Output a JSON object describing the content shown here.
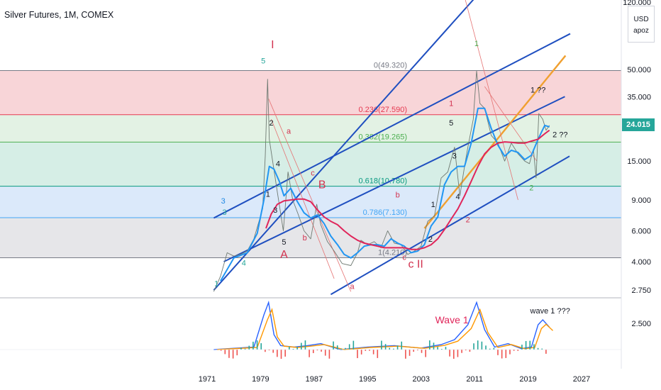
{
  "header": {
    "title": "Silver Futures, 1M, COMEX"
  },
  "side_panel": {
    "currency": "USD",
    "scale_button": "apoz"
  },
  "chart_data": {
    "type": "line",
    "title": "Silver Futures, 1M, COMEX",
    "y_scale": "log",
    "ylim": [
      2.5,
      130
    ],
    "xlim": [
      1968,
      2030
    ],
    "x_ticks": [
      "1971",
      "1979",
      "1987",
      "1995",
      "2003",
      "2011",
      "2019",
      "2027"
    ],
    "y_ticks": [
      "120.000",
      "50.000",
      "35.000",
      "15.000",
      "9.000",
      "6.000",
      "4.000",
      "2.750"
    ],
    "last_price": "24.015",
    "series": [
      {
        "values": [
          [
            1972,
            2.7
          ],
          [
            1973,
            3.3
          ],
          [
            1974,
            4.5
          ],
          [
            1975,
            4.3
          ],
          [
            1976,
            4.4
          ],
          [
            1977,
            4.6
          ],
          [
            1978,
            5.4
          ],
          [
            1979.3,
            8
          ],
          [
            1979.7,
            16
          ],
          [
            1980.05,
            44
          ],
          [
            1980.3,
            20
          ],
          [
            1980.8,
            15
          ],
          [
            1981.5,
            10
          ],
          [
            1982.4,
            6.0
          ],
          [
            1983.1,
            13
          ],
          [
            1983.8,
            9
          ],
          [
            1984.6,
            7.5
          ],
          [
            1985.5,
            6
          ],
          [
            1986.5,
            5.4
          ],
          [
            1987.4,
            8.5
          ],
          [
            1988,
            6.5
          ],
          [
            1989,
            5.2
          ],
          [
            1990,
            4.6
          ],
          [
            1991.2,
            3.9
          ],
          [
            1992.5,
            3.8
          ],
          [
            1993.5,
            4.5
          ],
          [
            1994,
            5.3
          ],
          [
            1995,
            5.0
          ],
          [
            1996,
            5.2
          ],
          [
            1997,
            4.8
          ],
          [
            1998,
            6.0
          ],
          [
            1999,
            5.1
          ],
          [
            2000,
            5.0
          ],
          [
            2001,
            4.4
          ],
          [
            2002,
            4.6
          ],
          [
            2003,
            4.9
          ],
          [
            2004,
            6.8
          ],
          [
            2005,
            7.3
          ],
          [
            2006,
            12
          ],
          [
            2007,
            13
          ],
          [
            2008,
            18
          ],
          [
            2008.8,
            9.5
          ],
          [
            2009.5,
            14
          ],
          [
            2010,
            18
          ],
          [
            2010.8,
            26
          ],
          [
            2011.3,
            49
          ],
          [
            2011.8,
            32
          ],
          [
            2012.5,
            30
          ],
          [
            2013.5,
            21
          ],
          [
            2014.5,
            19
          ],
          [
            2015.5,
            15
          ],
          [
            2016.5,
            19
          ],
          [
            2017.5,
            16.5
          ],
          [
            2018.5,
            15
          ],
          [
            2019.2,
            14.5
          ],
          [
            2019.8,
            17.5
          ],
          [
            2020.2,
            12
          ],
          [
            2020.6,
            28
          ],
          [
            2021.2,
            26
          ],
          [
            2021.7,
            22.5
          ],
          [
            2022.2,
            24
          ]
        ]
      },
      {
        "values": [
          [
            1973,
            3.1
          ],
          [
            1975,
            4.2
          ],
          [
            1977,
            4.5
          ],
          [
            1978.5,
            5.8
          ],
          [
            1979.5,
            9
          ],
          [
            1980.3,
            14
          ],
          [
            1981,
            13.5
          ],
          [
            1981.8,
            11.5
          ],
          [
            1982.5,
            9.5
          ],
          [
            1983.5,
            10.5
          ],
          [
            1984.5,
            8.8
          ],
          [
            1985.5,
            7.6
          ],
          [
            1986.5,
            7.1
          ],
          [
            1987.5,
            7.4
          ],
          [
            1988.5,
            6.6
          ],
          [
            1989.5,
            5.6
          ],
          [
            1990.5,
            5.0
          ],
          [
            1991.5,
            4.4
          ],
          [
            1992.5,
            4.2
          ],
          [
            1993.5,
            4.5
          ],
          [
            1994.5,
            4.9
          ],
          [
            1995.5,
            5.0
          ],
          [
            1996.5,
            5.0
          ],
          [
            1997.5,
            4.9
          ],
          [
            1998.5,
            5.4
          ],
          [
            1999.5,
            5.1
          ],
          [
            2000.5,
            4.9
          ],
          [
            2001.5,
            4.5
          ],
          [
            2002.5,
            4.6
          ],
          [
            2003.5,
            5.0
          ],
          [
            2004.5,
            6.4
          ],
          [
            2005.5,
            7.2
          ],
          [
            2006.5,
            11
          ],
          [
            2007.5,
            13
          ],
          [
            2008.5,
            14
          ],
          [
            2009.5,
            14
          ],
          [
            2010.5,
            19
          ],
          [
            2011.5,
            30
          ],
          [
            2012.5,
            30
          ],
          [
            2013.5,
            23
          ],
          [
            2014.5,
            18.5
          ],
          [
            2015.5,
            16
          ],
          [
            2016.5,
            17.3
          ],
          [
            2017.5,
            16.8
          ],
          [
            2018.5,
            15.3
          ],
          [
            2019.5,
            16.2
          ],
          [
            2020.5,
            20
          ],
          [
            2021.5,
            24
          ],
          [
            2022.2,
            23.5
          ]
        ]
      },
      {
        "values": [
          [
            1979.8,
            6.2
          ],
          [
            1980.6,
            7.5
          ],
          [
            1981.5,
            8.5
          ],
          [
            1982.5,
            8.9
          ],
          [
            1983.5,
            9.0
          ],
          [
            1984.5,
            9.1
          ],
          [
            1985.5,
            9.1
          ],
          [
            1986.5,
            8.8
          ],
          [
            1987.5,
            7.9
          ],
          [
            1988.5,
            7.2
          ],
          [
            1989.5,
            6.8
          ],
          [
            1990.5,
            6.5
          ],
          [
            1991.5,
            6.0
          ],
          [
            1992.5,
            5.6
          ],
          [
            1993.5,
            5.3
          ],
          [
            1994.5,
            5.1
          ],
          [
            1995.5,
            5.0
          ],
          [
            1996.5,
            4.9
          ],
          [
            1997.5,
            4.8
          ],
          [
            1998.5,
            4.8
          ],
          [
            1999.5,
            4.8
          ],
          [
            2000.5,
            4.8
          ],
          [
            2001.5,
            4.7
          ],
          [
            2002.5,
            4.7
          ],
          [
            2003.5,
            4.8
          ],
          [
            2004.5,
            5.0
          ],
          [
            2005.5,
            5.4
          ],
          [
            2006.5,
            6.1
          ],
          [
            2007.5,
            7.0
          ],
          [
            2008.5,
            8.0
          ],
          [
            2009.5,
            9.5
          ],
          [
            2010.5,
            11.5
          ],
          [
            2011.5,
            14
          ],
          [
            2012.5,
            16.5
          ],
          [
            2013.5,
            18
          ],
          [
            2014.5,
            19
          ],
          [
            2015.5,
            19.3
          ],
          [
            2016.5,
            19.2
          ],
          [
            2017.5,
            19
          ],
          [
            2018.5,
            19
          ],
          [
            2019.5,
            19.5
          ],
          [
            2020.5,
            20
          ],
          [
            2021.5,
            21.5
          ],
          [
            2022.2,
            22.5
          ]
        ]
      }
    ],
    "fib_levels": [
      {
        "label": "0(49.320)",
        "value": 49.32
      },
      {
        "label": "0.236(27.590)",
        "value": 27.59
      },
      {
        "label": "0.382(19.265)",
        "value": 19.265
      },
      {
        "label": "0.618(10.780)",
        "value": 10.78
      },
      {
        "label": "0.786(7.130)",
        "value": 7.13
      },
      {
        "label": "1(4.210)",
        "value": 4.21
      }
    ],
    "fib_zones": [
      {
        "from": 27.59,
        "to": 49.32,
        "color": "#f8d5d8"
      },
      {
        "from": 19.265,
        "to": 27.59,
        "color": "#e3f2e4"
      },
      {
        "from": 10.78,
        "to": 19.265,
        "color": "#d6eee6"
      },
      {
        "from": 7.13,
        "to": 10.78,
        "color": "#dbe9fa"
      },
      {
        "from": 4.21,
        "to": 7.13,
        "color": "#e6e6e9"
      }
    ],
    "channel_lines": [
      {
        "from": [
          1972,
          2.75
        ],
        "to": [
          2011.2,
          130
        ]
      },
      {
        "from": [
          1972,
          7.1
        ],
        "to": [
          2025.3,
          80
        ]
      },
      {
        "from": [
          1973.5,
          4.0
        ],
        "to": [
          2024.5,
          35
        ]
      },
      {
        "from": [
          1989.5,
          2.6
        ],
        "to": [
          2025.2,
          16
        ]
      },
      {
        "from": [
          2003.5,
          6.2
        ],
        "to": [
          2024.6,
          60
        ]
      }
    ],
    "annotations": [
      {
        "text": "I",
        "x": 1980.8,
        "y": 66,
        "color": "#d2324f"
      },
      {
        "text": "5",
        "x": 1979.4,
        "y": 54,
        "color": "#26a69a"
      },
      {
        "text": "2",
        "x": 1980.6,
        "y": 24,
        "color": "#131722"
      },
      {
        "text": "a",
        "x": 1983.2,
        "y": 21.5,
        "color": "#d2324f"
      },
      {
        "text": "4",
        "x": 1981.6,
        "y": 14,
        "color": "#131722"
      },
      {
        "text": "c",
        "x": 1986.8,
        "y": 12.4,
        "color": "#d2324f"
      },
      {
        "text": "B",
        "x": 1988.2,
        "y": 10.5,
        "color": "#d2324f"
      },
      {
        "text": "1",
        "x": 1980.1,
        "y": 9.4,
        "color": "#131722"
      },
      {
        "text": "3",
        "x": 1981.2,
        "y": 7.6,
        "color": "#131722"
      },
      {
        "text": "5",
        "x": 1982.5,
        "y": 5.0,
        "color": "#131722"
      },
      {
        "text": "A",
        "x": 1982.5,
        "y": 4.2,
        "color": "#d2324f"
      },
      {
        "text": "b",
        "x": 1985.6,
        "y": 5.3,
        "color": "#d2324f"
      },
      {
        "text": "3",
        "x": 1973.4,
        "y": 8.6,
        "color": "#1e88e5"
      },
      {
        "text": "3",
        "x": 1973.6,
        "y": 7.4,
        "color": "#26a69a"
      },
      {
        "text": "4",
        "x": 1976.5,
        "y": 3.8,
        "color": "#26a69a"
      },
      {
        "text": "1",
        "x": 1972.4,
        "y": 2.9,
        "color": "#26a69a"
      },
      {
        "text": "a",
        "x": 1992.7,
        "y": 2.8,
        "color": "#d2324f"
      },
      {
        "text": "b",
        "x": 1999.5,
        "y": 9.3,
        "color": "#d2324f"
      },
      {
        "text": "c",
        "x": 2000.5,
        "y": 4.1,
        "color": "#d2324f"
      },
      {
        "text": "c II",
        "x": 2002.2,
        "y": 3.7,
        "color": "#d2324f"
      },
      {
        "text": "1",
        "x": 2004.8,
        "y": 8.2,
        "color": "#131722"
      },
      {
        "text": "2",
        "x": 2004.4,
        "y": 5.2,
        "color": "#131722"
      },
      {
        "text": "3",
        "x": 2008.0,
        "y": 15.5,
        "color": "#131722"
      },
      {
        "text": "4",
        "x": 2008.5,
        "y": 9.1,
        "color": "#131722"
      },
      {
        "text": "5",
        "x": 2007.5,
        "y": 24,
        "color": "#131722"
      },
      {
        "text": "1",
        "x": 2007.5,
        "y": 31,
        "color": "#d2324f"
      },
      {
        "text": "2",
        "x": 2010.0,
        "y": 6.7,
        "color": "#d2324f"
      },
      {
        "text": "1",
        "x": 2011.3,
        "y": 68,
        "color": "#4caf50"
      },
      {
        "text": "1 ??",
        "x": 2020.5,
        "y": 37,
        "color": "#131722"
      },
      {
        "text": "2 ??",
        "x": 2023.8,
        "y": 20.5,
        "color": "#131722"
      },
      {
        "text": "2",
        "x": 2019.5,
        "y": 10.2,
        "color": "#4caf50"
      }
    ],
    "indicator": {
      "labels": [
        "Wave 1",
        "wave 1 ???"
      ],
      "y_tick": "2.500"
    }
  }
}
